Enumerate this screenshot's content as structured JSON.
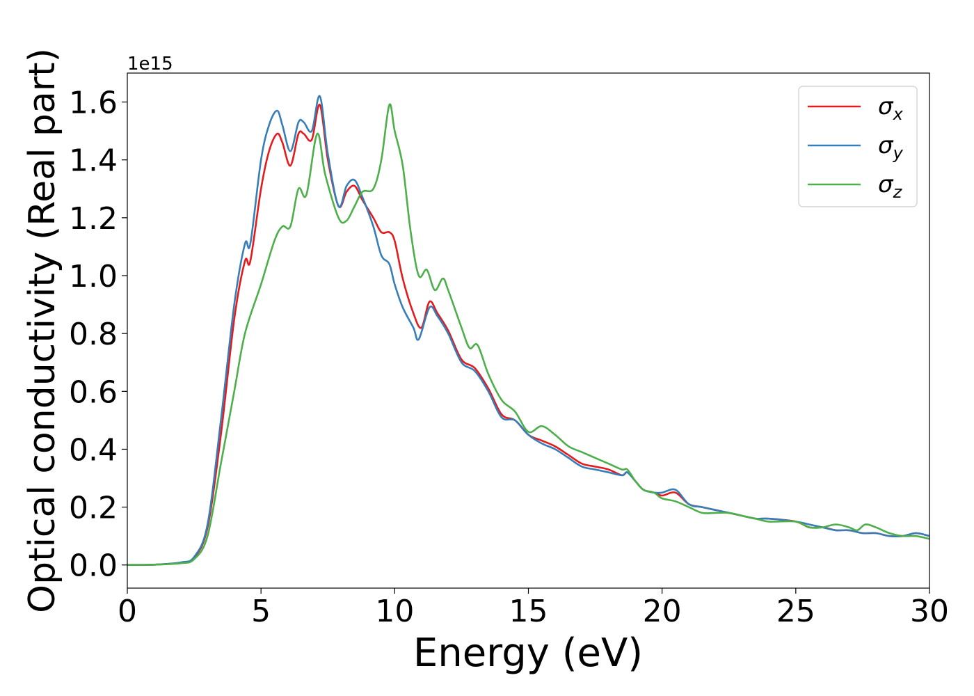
{
  "chart_data": {
    "type": "line",
    "title": "",
    "xlabel": "Energy (eV)",
    "ylabel": "Optical conductivity (Real part)",
    "offset_label": "1e15",
    "xlim": [
      0,
      30
    ],
    "ylim": [
      -0.08,
      1.7
    ],
    "x_ticks": [
      0,
      5,
      10,
      15,
      20,
      25,
      30
    ],
    "y_ticks": [
      0.0,
      0.2,
      0.4,
      0.6,
      0.8,
      1.0,
      1.2,
      1.4,
      1.6
    ],
    "x_tick_labels": [
      "0",
      "5",
      "10",
      "15",
      "20",
      "25",
      "30"
    ],
    "y_tick_labels": [
      "0.0",
      "0.2",
      "0.4",
      "0.6",
      "0.8",
      "1.0",
      "1.2",
      "1.4",
      "1.6"
    ],
    "grid": false,
    "legend_position": "top-right",
    "series": [
      {
        "name": "σx",
        "base": "σ",
        "sub": "x",
        "color": "#e41a1c",
        "points": [
          [
            0,
            0
          ],
          [
            1,
            0.001
          ],
          [
            2,
            0.008
          ],
          [
            2.5,
            0.025
          ],
          [
            3,
            0.13
          ],
          [
            3.5,
            0.45
          ],
          [
            4,
            0.85
          ],
          [
            4.4,
            1.05
          ],
          [
            4.6,
            1.05
          ],
          [
            5,
            1.3
          ],
          [
            5.3,
            1.43
          ],
          [
            5.6,
            1.49
          ],
          [
            5.8,
            1.46
          ],
          [
            6.1,
            1.38
          ],
          [
            6.4,
            1.49
          ],
          [
            6.6,
            1.49
          ],
          [
            6.9,
            1.47
          ],
          [
            7.2,
            1.59
          ],
          [
            7.5,
            1.4
          ],
          [
            7.9,
            1.24
          ],
          [
            8.2,
            1.29
          ],
          [
            8.5,
            1.31
          ],
          [
            8.8,
            1.26
          ],
          [
            9.2,
            1.2
          ],
          [
            9.5,
            1.15
          ],
          [
            9.8,
            1.15
          ],
          [
            10,
            1.12
          ],
          [
            10.3,
            0.99
          ],
          [
            10.7,
            0.87
          ],
          [
            11,
            0.82
          ],
          [
            11.3,
            0.91
          ],
          [
            11.6,
            0.87
          ],
          [
            12,
            0.81
          ],
          [
            12.5,
            0.71
          ],
          [
            13,
            0.68
          ],
          [
            13.5,
            0.61
          ],
          [
            14,
            0.52
          ],
          [
            14.5,
            0.5
          ],
          [
            15,
            0.45
          ],
          [
            15.5,
            0.43
          ],
          [
            16,
            0.41
          ],
          [
            16.5,
            0.38
          ],
          [
            17,
            0.35
          ],
          [
            17.5,
            0.34
          ],
          [
            18,
            0.33
          ],
          [
            18.5,
            0.31
          ],
          [
            18.7,
            0.32
          ],
          [
            19,
            0.29
          ],
          [
            19.3,
            0.26
          ],
          [
            19.7,
            0.25
          ],
          [
            20,
            0.24
          ],
          [
            20.5,
            0.25
          ],
          [
            21,
            0.21
          ],
          [
            21.5,
            0.2
          ],
          [
            22,
            0.19
          ],
          [
            22.5,
            0.18
          ],
          [
            23,
            0.17
          ],
          [
            23.5,
            0.16
          ],
          [
            24,
            0.16
          ],
          [
            25,
            0.15
          ],
          [
            25.5,
            0.13
          ],
          [
            26,
            0.13
          ],
          [
            26.5,
            0.12
          ],
          [
            27,
            0.12
          ],
          [
            27.5,
            0.11
          ],
          [
            28,
            0.11
          ],
          [
            28.5,
            0.1
          ],
          [
            29,
            0.1
          ],
          [
            29.5,
            0.11
          ],
          [
            30,
            0.1
          ]
        ]
      },
      {
        "name": "σy",
        "base": "σ",
        "sub": "y",
        "color": "#377eb8",
        "points": [
          [
            0,
            0
          ],
          [
            1,
            0.001
          ],
          [
            2,
            0.009
          ],
          [
            2.5,
            0.028
          ],
          [
            3,
            0.14
          ],
          [
            3.5,
            0.5
          ],
          [
            4,
            0.9
          ],
          [
            4.4,
            1.11
          ],
          [
            4.6,
            1.11
          ],
          [
            5,
            1.4
          ],
          [
            5.3,
            1.52
          ],
          [
            5.6,
            1.57
          ],
          [
            5.8,
            1.52
          ],
          [
            6.1,
            1.43
          ],
          [
            6.4,
            1.53
          ],
          [
            6.6,
            1.53
          ],
          [
            6.9,
            1.5
          ],
          [
            7.2,
            1.62
          ],
          [
            7.5,
            1.42
          ],
          [
            7.9,
            1.24
          ],
          [
            8.2,
            1.31
          ],
          [
            8.5,
            1.33
          ],
          [
            8.8,
            1.27
          ],
          [
            9.2,
            1.17
          ],
          [
            9.5,
            1.07
          ],
          [
            9.8,
            1.04
          ],
          [
            10,
            0.97
          ],
          [
            10.3,
            0.89
          ],
          [
            10.7,
            0.82
          ],
          [
            10.9,
            0.78
          ],
          [
            11.3,
            0.89
          ],
          [
            11.6,
            0.86
          ],
          [
            12,
            0.8
          ],
          [
            12.5,
            0.7
          ],
          [
            13,
            0.67
          ],
          [
            13.5,
            0.6
          ],
          [
            14,
            0.51
          ],
          [
            14.5,
            0.5
          ],
          [
            15,
            0.45
          ],
          [
            15.5,
            0.42
          ],
          [
            16,
            0.4
          ],
          [
            16.5,
            0.37
          ],
          [
            17,
            0.34
          ],
          [
            17.5,
            0.33
          ],
          [
            18,
            0.32
          ],
          [
            18.5,
            0.31
          ],
          [
            18.7,
            0.32
          ],
          [
            19,
            0.29
          ],
          [
            19.3,
            0.26
          ],
          [
            19.7,
            0.25
          ],
          [
            20,
            0.25
          ],
          [
            20.5,
            0.26
          ],
          [
            21,
            0.21
          ],
          [
            21.5,
            0.2
          ],
          [
            22,
            0.19
          ],
          [
            22.5,
            0.18
          ],
          [
            23,
            0.17
          ],
          [
            23.5,
            0.16
          ],
          [
            24,
            0.16
          ],
          [
            25,
            0.15
          ],
          [
            25.5,
            0.14
          ],
          [
            26,
            0.13
          ],
          [
            26.5,
            0.12
          ],
          [
            27,
            0.12
          ],
          [
            27.5,
            0.11
          ],
          [
            28,
            0.11
          ],
          [
            28.5,
            0.1
          ],
          [
            29,
            0.1
          ],
          [
            29.5,
            0.11
          ],
          [
            30,
            0.1
          ]
        ]
      },
      {
        "name": "σz",
        "base": "σ",
        "sub": "z",
        "color": "#4daf4a",
        "points": [
          [
            0,
            0
          ],
          [
            1,
            0.001
          ],
          [
            2,
            0.006
          ],
          [
            2.5,
            0.02
          ],
          [
            3,
            0.1
          ],
          [
            3.5,
            0.35
          ],
          [
            4,
            0.6
          ],
          [
            4.4,
            0.8
          ],
          [
            5,
            0.97
          ],
          [
            5.5,
            1.12
          ],
          [
            5.8,
            1.17
          ],
          [
            6.1,
            1.17
          ],
          [
            6.4,
            1.3
          ],
          [
            6.7,
            1.28
          ],
          [
            7.1,
            1.49
          ],
          [
            7.4,
            1.35
          ],
          [
            7.9,
            1.2
          ],
          [
            8.2,
            1.19
          ],
          [
            8.5,
            1.24
          ],
          [
            8.8,
            1.29
          ],
          [
            9.2,
            1.3
          ],
          [
            9.5,
            1.4
          ],
          [
            9.8,
            1.59
          ],
          [
            10,
            1.5
          ],
          [
            10.3,
            1.38
          ],
          [
            10.6,
            1.15
          ],
          [
            10.9,
            1.0
          ],
          [
            11.2,
            1.02
          ],
          [
            11.5,
            0.95
          ],
          [
            11.8,
            0.99
          ],
          [
            12,
            0.95
          ],
          [
            12.5,
            0.82
          ],
          [
            12.8,
            0.75
          ],
          [
            13.1,
            0.76
          ],
          [
            13.5,
            0.66
          ],
          [
            14,
            0.57
          ],
          [
            14.5,
            0.53
          ],
          [
            15,
            0.46
          ],
          [
            15.5,
            0.48
          ],
          [
            16,
            0.45
          ],
          [
            16.5,
            0.41
          ],
          [
            17,
            0.39
          ],
          [
            17.5,
            0.37
          ],
          [
            18,
            0.35
          ],
          [
            18.5,
            0.33
          ],
          [
            18.7,
            0.33
          ],
          [
            19,
            0.29
          ],
          [
            19.3,
            0.26
          ],
          [
            19.7,
            0.25
          ],
          [
            20,
            0.23
          ],
          [
            20.5,
            0.22
          ],
          [
            21,
            0.2
          ],
          [
            21.5,
            0.18
          ],
          [
            22,
            0.18
          ],
          [
            22.5,
            0.18
          ],
          [
            23,
            0.17
          ],
          [
            23.5,
            0.16
          ],
          [
            24,
            0.15
          ],
          [
            25,
            0.15
          ],
          [
            25.5,
            0.13
          ],
          [
            26,
            0.13
          ],
          [
            26.5,
            0.14
          ],
          [
            27,
            0.13
          ],
          [
            27.3,
            0.12
          ],
          [
            27.6,
            0.14
          ],
          [
            28,
            0.13
          ],
          [
            28.5,
            0.11
          ],
          [
            29,
            0.1
          ],
          [
            29.5,
            0.1
          ],
          [
            30,
            0.09
          ]
        ]
      }
    ]
  }
}
